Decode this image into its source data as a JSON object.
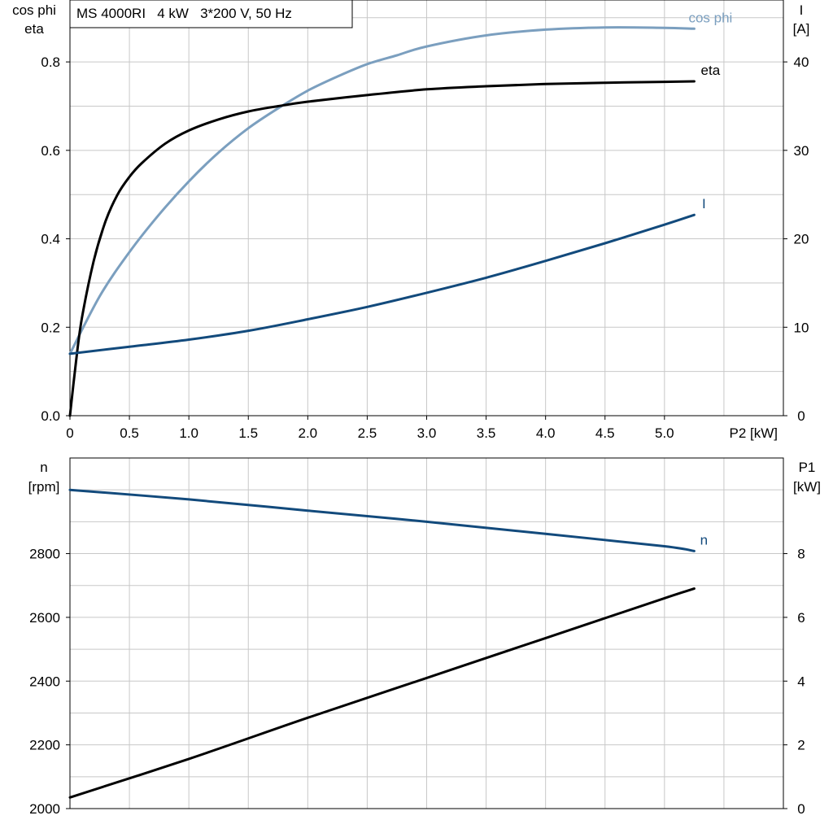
{
  "title": "MS 4000RI   4 kW   3*200 V, 50 Hz",
  "colors": {
    "cos_phi": "#7b9fbf",
    "eta": "#000000",
    "I": "#124a7c",
    "n": "#124a7c",
    "P1": "#000000",
    "grid": "#c8c8c8"
  },
  "chart_data": [
    {
      "type": "line",
      "x_label": "P2 [kW]",
      "y_label_left": [
        "cos phi",
        "eta"
      ],
      "y_label_right": [
        "I",
        "[A]"
      ],
      "xlim": [
        0,
        6.0
      ],
      "ylim_left": [
        0,
        0.94
      ],
      "ylim_right": [
        0,
        47
      ],
      "x_ticks": [
        "0",
        "0.5",
        "1.0",
        "1.5",
        "2.0",
        "2.5",
        "3.0",
        "3.5",
        "4.0",
        "4.5",
        "5.0"
      ],
      "y_ticks_left": [
        "0.0",
        "0.2",
        "0.4",
        "0.6",
        "0.8"
      ],
      "y_ticks_right": [
        "0",
        "10",
        "20",
        "30",
        "40"
      ],
      "grid": true,
      "series": [
        {
          "name": "cos phi",
          "axis": "left",
          "x": [
            0,
            0.25,
            0.5,
            0.75,
            1.0,
            1.25,
            1.5,
            1.75,
            2.0,
            2.25,
            2.5,
            2.75,
            3.0,
            3.5,
            4.0,
            4.5,
            5.0,
            5.25
          ],
          "y": [
            0.14,
            0.27,
            0.37,
            0.455,
            0.53,
            0.595,
            0.65,
            0.695,
            0.735,
            0.767,
            0.795,
            0.815,
            0.835,
            0.86,
            0.873,
            0.878,
            0.877,
            0.875
          ]
        },
        {
          "name": "eta",
          "axis": "left",
          "x": [
            0,
            0.05,
            0.1,
            0.2,
            0.3,
            0.4,
            0.5,
            0.6,
            0.8,
            1.0,
            1.25,
            1.5,
            1.75,
            2.0,
            2.5,
            3.0,
            3.5,
            4.0,
            4.5,
            5.0,
            5.25
          ],
          "y": [
            0.0,
            0.12,
            0.22,
            0.35,
            0.44,
            0.5,
            0.54,
            0.57,
            0.615,
            0.645,
            0.67,
            0.688,
            0.7,
            0.71,
            0.725,
            0.738,
            0.745,
            0.75,
            0.753,
            0.755,
            0.756
          ]
        },
        {
          "name": "I",
          "axis": "right",
          "x": [
            0,
            0.5,
            1.0,
            1.5,
            2.0,
            2.5,
            3.0,
            3.5,
            4.0,
            4.5,
            5.0,
            5.25
          ],
          "y": [
            7.0,
            7.8,
            8.6,
            9.6,
            10.9,
            12.3,
            13.9,
            15.6,
            17.5,
            19.5,
            21.6,
            22.7
          ]
        }
      ]
    },
    {
      "type": "line",
      "x_label": "",
      "y_label_left": [
        "n",
        "[rpm]"
      ],
      "y_label_right": [
        "P1",
        "[kW]"
      ],
      "xlim": [
        0,
        6.0
      ],
      "ylim_left": [
        2000,
        3100
      ],
      "ylim_right": [
        0,
        11
      ],
      "y_ticks_left": [
        "2000",
        "2200",
        "2400",
        "2600",
        "2800"
      ],
      "y_ticks_right": [
        "0",
        "2",
        "4",
        "6",
        "8"
      ],
      "grid": true,
      "series": [
        {
          "name": "n",
          "axis": "left",
          "x": [
            0,
            1.0,
            2.0,
            3.0,
            4.0,
            5.0,
            5.25
          ],
          "y": [
            3000,
            2970,
            2935,
            2900,
            2862,
            2823,
            2808
          ]
        },
        {
          "name": "",
          "axis": "right",
          "x": [
            0,
            1.0,
            2.0,
            3.0,
            4.0,
            5.0,
            5.25
          ],
          "y": [
            0.35,
            1.56,
            2.85,
            4.1,
            5.35,
            6.6,
            6.9
          ]
        }
      ]
    }
  ]
}
